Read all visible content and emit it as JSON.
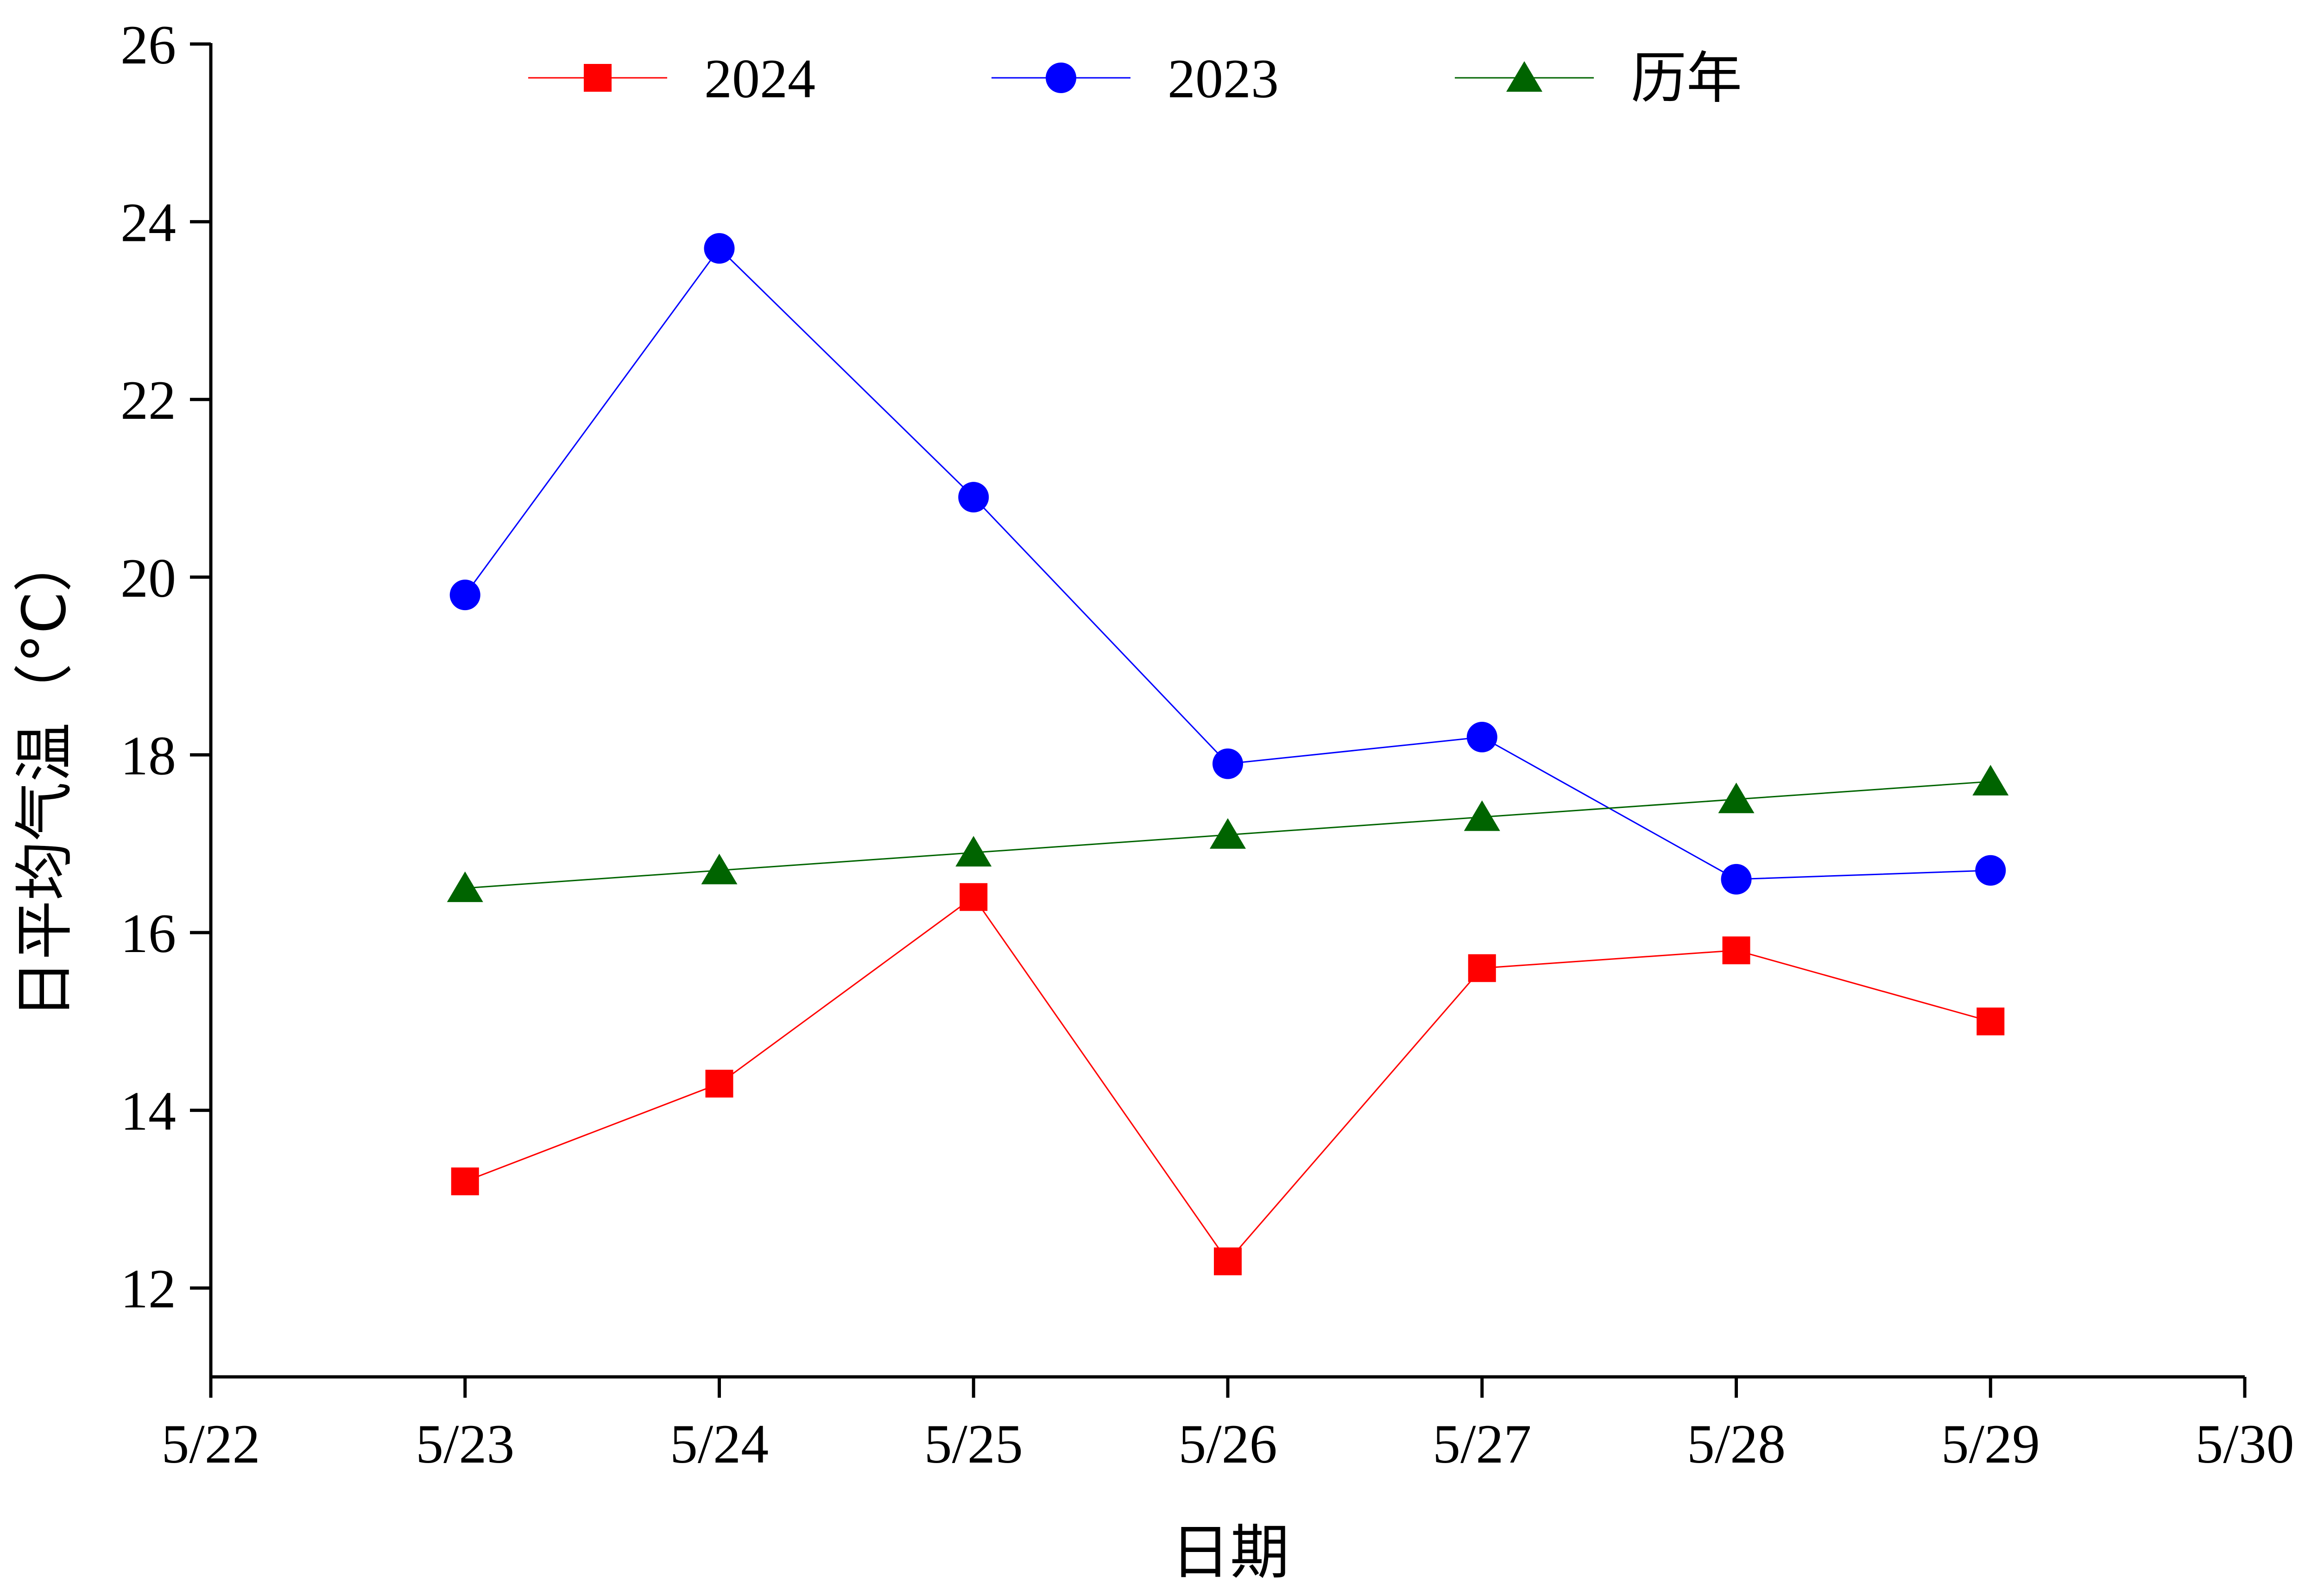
{
  "chart_data": {
    "type": "line",
    "title": "",
    "xlabel": "日期",
    "ylabel": "日平均气温（°C）",
    "x": [
      "5/23",
      "5/24",
      "5/25",
      "5/26",
      "5/27",
      "5/28",
      "5/29"
    ],
    "x_ticks": [
      "5/22",
      "5/23",
      "5/24",
      "5/25",
      "5/26",
      "5/27",
      "5/28",
      "5/29",
      "5/30"
    ],
    "y_ticks": [
      "12",
      "14",
      "16",
      "18",
      "20",
      "22",
      "24",
      "26"
    ],
    "ylim": [
      11,
      26
    ],
    "grid": false,
    "legend_position": "top",
    "series": [
      {
        "name": "2024",
        "color": "#ff0000",
        "marker": "square",
        "values": [
          13.2,
          14.3,
          16.4,
          12.3,
          15.6,
          15.8,
          15.0
        ]
      },
      {
        "name": "2023",
        "color": "#0000ff",
        "marker": "circle",
        "values": [
          19.8,
          23.7,
          20.9,
          17.9,
          18.2,
          16.6,
          16.7
        ]
      },
      {
        "name": "历年",
        "color": "#006400",
        "marker": "triangle",
        "values": [
          16.5,
          16.7,
          16.9,
          17.1,
          17.3,
          17.5,
          17.7
        ]
      }
    ]
  }
}
